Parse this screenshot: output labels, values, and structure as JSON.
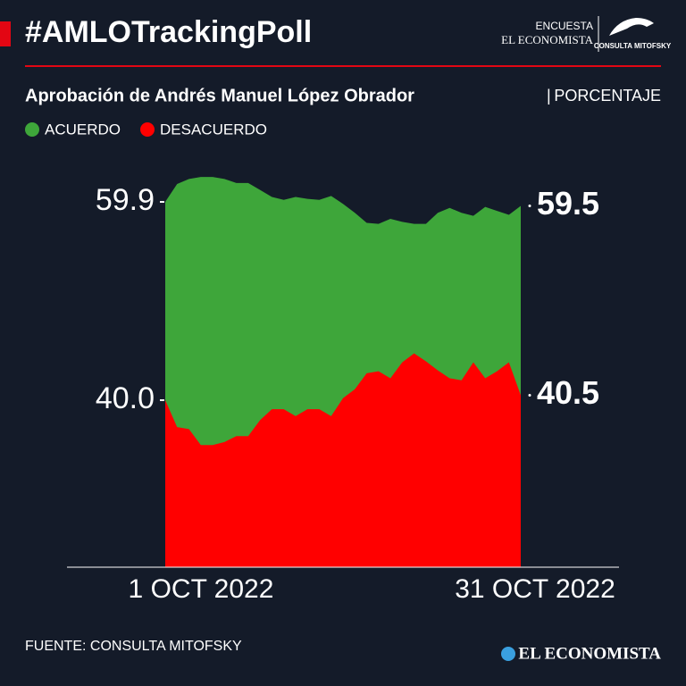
{
  "header": {
    "title": "#AMLOTrackingPoll",
    "brand_top": "ENCUESTA",
    "brand_name": "EL ECONOMISTA",
    "brand_logo": "CONSULTA MITOFSKY"
  },
  "chart_data": {
    "type": "area",
    "title": "Aprobación de Andrés Manuel López Obrador",
    "unit": "PORCENTAJE",
    "categories": [
      "1 OCT 2022",
      null,
      null,
      null,
      null,
      null,
      null,
      null,
      null,
      null,
      null,
      null,
      null,
      null,
      null,
      null,
      null,
      null,
      null,
      null,
      null,
      null,
      null,
      null,
      null,
      null,
      null,
      null,
      null,
      null,
      "31 OCT 2022"
    ],
    "series": [
      {
        "name": "ACUERDO",
        "color": "#3ea63a",
        "values": [
          59.9,
          61.7,
          62.2,
          62.4,
          62.4,
          62.2,
          61.8,
          61.8,
          61.1,
          60.4,
          60.1,
          60.4,
          60.2,
          60.1,
          60.5,
          59.7,
          58.8,
          57.8,
          57.7,
          58.2,
          57.9,
          57.7,
          57.7,
          58.8,
          59.3,
          58.8,
          58.5,
          59.4,
          59.0,
          58.6,
          59.5
        ]
      },
      {
        "name": "DESACUERDO",
        "color": "#ff0000",
        "values": [
          40.0,
          37.3,
          37.1,
          35.5,
          35.5,
          35.8,
          36.4,
          36.4,
          38.0,
          39.1,
          39.1,
          38.4,
          39.1,
          39.1,
          38.4,
          40.2,
          41.1,
          42.7,
          42.9,
          42.2,
          43.8,
          44.7,
          43.9,
          43.0,
          42.2,
          42.0,
          43.8,
          42.2,
          42.9,
          43.8,
          40.5
        ]
      }
    ],
    "ylim": [
      23.24,
      63.13
    ],
    "yticks": [
      59.9,
      {
        "value": 40.0,
        "label": "40.0"
      }
    ],
    "grid": false,
    "source": "FUENTE: CONSULTA MITOFSKY",
    "footer_brand": "EL ECONOMISTA"
  }
}
